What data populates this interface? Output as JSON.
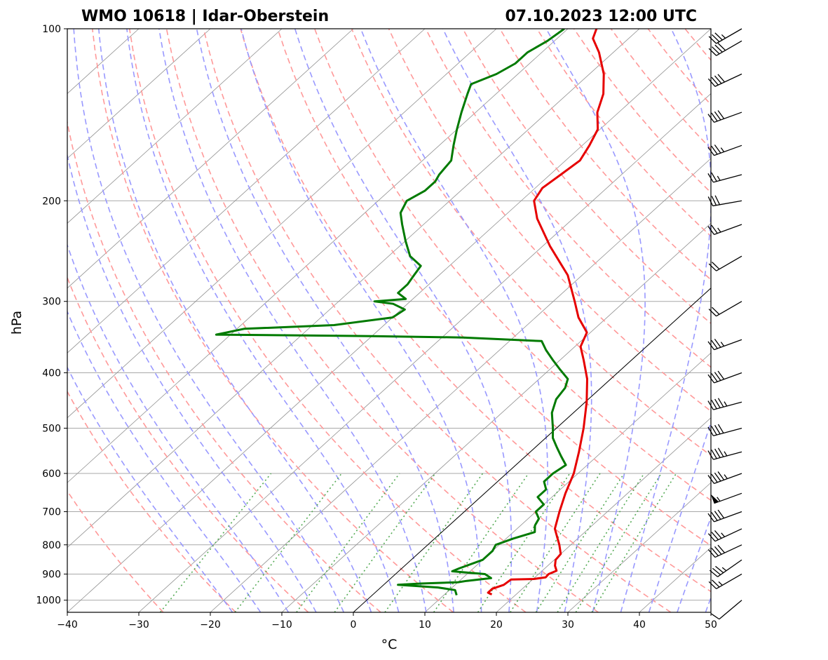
{
  "chart_data": {
    "type": "skew-t",
    "title_left": "WMO 10618 | Idar-Oberstein",
    "title_right": "07.10.2023 12:00 UTC",
    "xlabel": "°C",
    "ylabel": "hPa",
    "xlim": [
      -40,
      50
    ],
    "ylim": [
      1050,
      100
    ],
    "x_ticks": [
      -40,
      -30,
      -20,
      -10,
      0,
      10,
      20,
      30,
      40,
      50
    ],
    "x_tick_labels": [
      "−40",
      "−30",
      "−20",
      "−10",
      "0",
      "10",
      "20",
      "30",
      "40",
      "50"
    ],
    "y_ticks": [
      100,
      200,
      300,
      400,
      500,
      600,
      700,
      800,
      900,
      1000
    ],
    "y_tick_labels": [
      "100",
      "200",
      "300",
      "400",
      "500",
      "600",
      "700",
      "800",
      "900",
      "1000"
    ],
    "grid": true,
    "series": [
      {
        "name": "temperature",
        "color": "#e60000",
        "points": [
          [
            977,
            16.6
          ],
          [
            970,
            15.8
          ],
          [
            955,
            15.8
          ],
          [
            940,
            16.8
          ],
          [
            920,
            17.0
          ],
          [
            918,
            20.1
          ],
          [
            912,
            21.5
          ],
          [
            900,
            21.4
          ],
          [
            888,
            22.0
          ],
          [
            870,
            21.0
          ],
          [
            850,
            20.2
          ],
          [
            830,
            20.0
          ],
          [
            800,
            18.4
          ],
          [
            750,
            15.3
          ],
          [
            700,
            13.3
          ],
          [
            650,
            11.3
          ],
          [
            600,
            9.4
          ],
          [
            550,
            6.8
          ],
          [
            500,
            3.8
          ],
          [
            450,
            0.2
          ],
          [
            410,
            -3.3
          ],
          [
            380,
            -6.7
          ],
          [
            360,
            -9.2
          ],
          [
            340,
            -10.5
          ],
          [
            320,
            -14.0
          ],
          [
            300,
            -17.0
          ],
          [
            270,
            -22.0
          ],
          [
            240,
            -29.0
          ],
          [
            215,
            -35.0
          ],
          [
            200,
            -38.2
          ],
          [
            190,
            -39.0
          ],
          [
            180,
            -38.5
          ],
          [
            170,
            -38.0
          ],
          [
            160,
            -39.0
          ],
          [
            150,
            -40.3
          ],
          [
            140,
            -43.0
          ],
          [
            130,
            -45.0
          ],
          [
            120,
            -48.0
          ],
          [
            110,
            -52.0
          ],
          [
            104,
            -55.0
          ],
          [
            100,
            -56.0
          ]
        ]
      },
      {
        "name": "dewpoint",
        "color": "#007a00",
        "points": [
          [
            980,
            11.8
          ],
          [
            960,
            10.8
          ],
          [
            950,
            8.0
          ],
          [
            940,
            2.0
          ],
          [
            935,
            5.0
          ],
          [
            930,
            10.0
          ],
          [
            925,
            11.0
          ],
          [
            915,
            14.0
          ],
          [
            900,
            12.5
          ],
          [
            890,
            7.5
          ],
          [
            880,
            8.0
          ],
          [
            850,
            10.0
          ],
          [
            820,
            10.0
          ],
          [
            800,
            9.5
          ],
          [
            780,
            11.0
          ],
          [
            760,
            13.0
          ],
          [
            740,
            12.0
          ],
          [
            720,
            11.5
          ],
          [
            700,
            10.0
          ],
          [
            680,
            10.0
          ],
          [
            660,
            8.0
          ],
          [
            640,
            8.0
          ],
          [
            620,
            6.5
          ],
          [
            600,
            6.5
          ],
          [
            580,
            7.0
          ],
          [
            560,
            5.0
          ],
          [
            540,
            3.0
          ],
          [
            520,
            1.0
          ],
          [
            500,
            -0.5
          ],
          [
            470,
            -3.0
          ],
          [
            445,
            -4.5
          ],
          [
            425,
            -5.0
          ],
          [
            410,
            -6.0
          ],
          [
            395,
            -8.5
          ],
          [
            380,
            -11.0
          ],
          [
            365,
            -13.5
          ],
          [
            352,
            -15.5
          ],
          [
            347,
            -27.0
          ],
          [
            345,
            -40.0
          ],
          [
            343,
            -62.0
          ],
          [
            335,
            -59.0
          ],
          [
            330,
            -47.0
          ],
          [
            320,
            -40.0
          ],
          [
            310,
            -39.5
          ],
          [
            303,
            -42.0
          ],
          [
            300,
            -45.0
          ],
          [
            297,
            -41.0
          ],
          [
            290,
            -43.0
          ],
          [
            280,
            -43.0
          ],
          [
            270,
            -43.5
          ],
          [
            260,
            -44.0
          ],
          [
            250,
            -47.0
          ],
          [
            235,
            -50.0
          ],
          [
            220,
            -53.0
          ],
          [
            210,
            -55.0
          ],
          [
            200,
            -56.0
          ],
          [
            192,
            -55.0
          ],
          [
            185,
            -55.0
          ],
          [
            180,
            -55.5
          ],
          [
            170,
            -56.0
          ],
          [
            160,
            -58.0
          ],
          [
            150,
            -60.0
          ],
          [
            140,
            -62.0
          ],
          [
            130,
            -64.0
          ],
          [
            125,
            -65.0
          ],
          [
            120,
            -63.0
          ],
          [
            115,
            -62.0
          ],
          [
            110,
            -62.0
          ],
          [
            105,
            -61.0
          ],
          [
            100,
            -60.5
          ]
        ]
      }
    ],
    "parcel_path_start_c": 0,
    "winds": {
      "description": "wind barbs along right margin",
      "units": "kt",
      "barbs": [
        [
          1000,
          230,
          10
        ],
        [
          900,
          240,
          25
        ],
        [
          850,
          235,
          35
        ],
        [
          800,
          245,
          40
        ],
        [
          750,
          245,
          35
        ],
        [
          700,
          250,
          40
        ],
        [
          650,
          250,
          55
        ],
        [
          600,
          250,
          45
        ],
        [
          550,
          255,
          45
        ],
        [
          500,
          255,
          40
        ],
        [
          450,
          255,
          45
        ],
        [
          400,
          250,
          40
        ],
        [
          350,
          250,
          35
        ],
        [
          300,
          240,
          20
        ],
        [
          250,
          240,
          20
        ],
        [
          220,
          250,
          25
        ],
        [
          200,
          260,
          30
        ],
        [
          180,
          255,
          25
        ],
        [
          160,
          250,
          35
        ],
        [
          140,
          250,
          40
        ],
        [
          120,
          245,
          40
        ],
        [
          105,
          240,
          40
        ],
        [
          100,
          240,
          35
        ]
      ]
    },
    "colors": {
      "dry_adiabat": "#ff9999",
      "moist_adiabat": "#9999ff",
      "mixing_ratio": "#55aa55",
      "isotherm": "#909090",
      "isobar": "#a8a8a8"
    }
  }
}
